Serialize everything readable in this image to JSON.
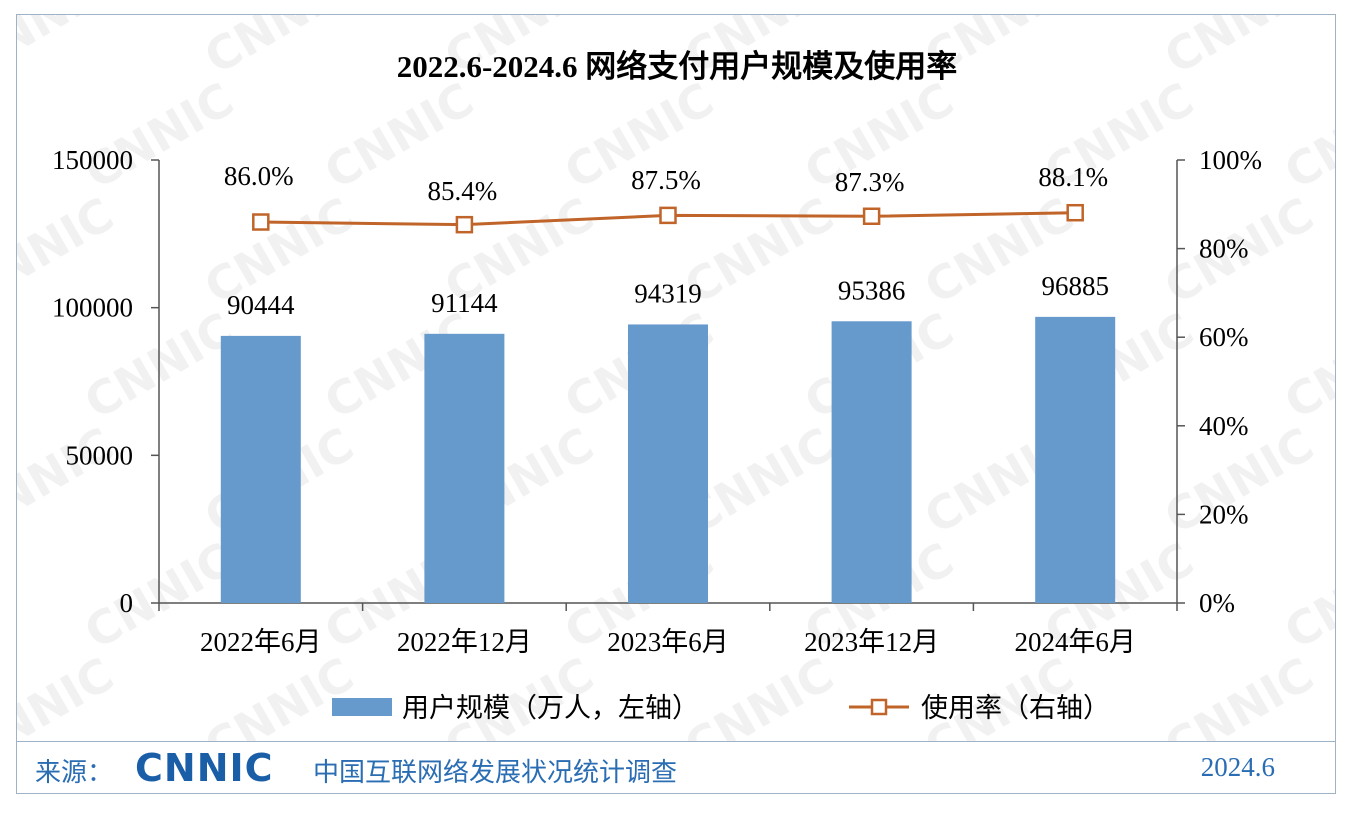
{
  "chart_data": {
    "type": "bar",
    "title": "2022.6-2024.6 网络支付用户规模及使用率",
    "categories": [
      "2022年6月",
      "2022年12月",
      "2023年6月",
      "2023年12月",
      "2024年6月"
    ],
    "series": [
      {
        "name": "用户规模（万人，左轴）",
        "type": "bar",
        "axis": "left",
        "values": [
          90444,
          91144,
          94319,
          95386,
          96885
        ],
        "labels": [
          "90444",
          "91144",
          "94319",
          "95386",
          "96885"
        ]
      },
      {
        "name": "使用率（右轴）",
        "type": "line",
        "axis": "right",
        "values": [
          86.0,
          85.4,
          87.5,
          87.3,
          88.1
        ],
        "labels": [
          "86.0%",
          "85.4%",
          "87.5%",
          "87.3%",
          "88.1%"
        ]
      }
    ],
    "y_left": {
      "min": 0,
      "max": 150000,
      "ticks": [
        0,
        50000,
        100000,
        150000
      ],
      "tick_labels": [
        "0",
        "50000",
        "100000",
        "150000"
      ]
    },
    "y_right": {
      "min": 0,
      "max": 100,
      "ticks": [
        0,
        20,
        40,
        60,
        80,
        100
      ],
      "tick_labels": [
        "0%",
        "20%",
        "40%",
        "60%",
        "80%",
        "100%"
      ]
    },
    "grid": false,
    "legend_position": "bottom",
    "colors": {
      "bar": "#6699cc",
      "line": "#c0642a"
    }
  },
  "watermark": "CNNIC",
  "footer": {
    "source_label": "来源：",
    "logo_text": "CNNIC",
    "organization": "中国互联网络发展状况统计调查",
    "date": "2024.6"
  }
}
